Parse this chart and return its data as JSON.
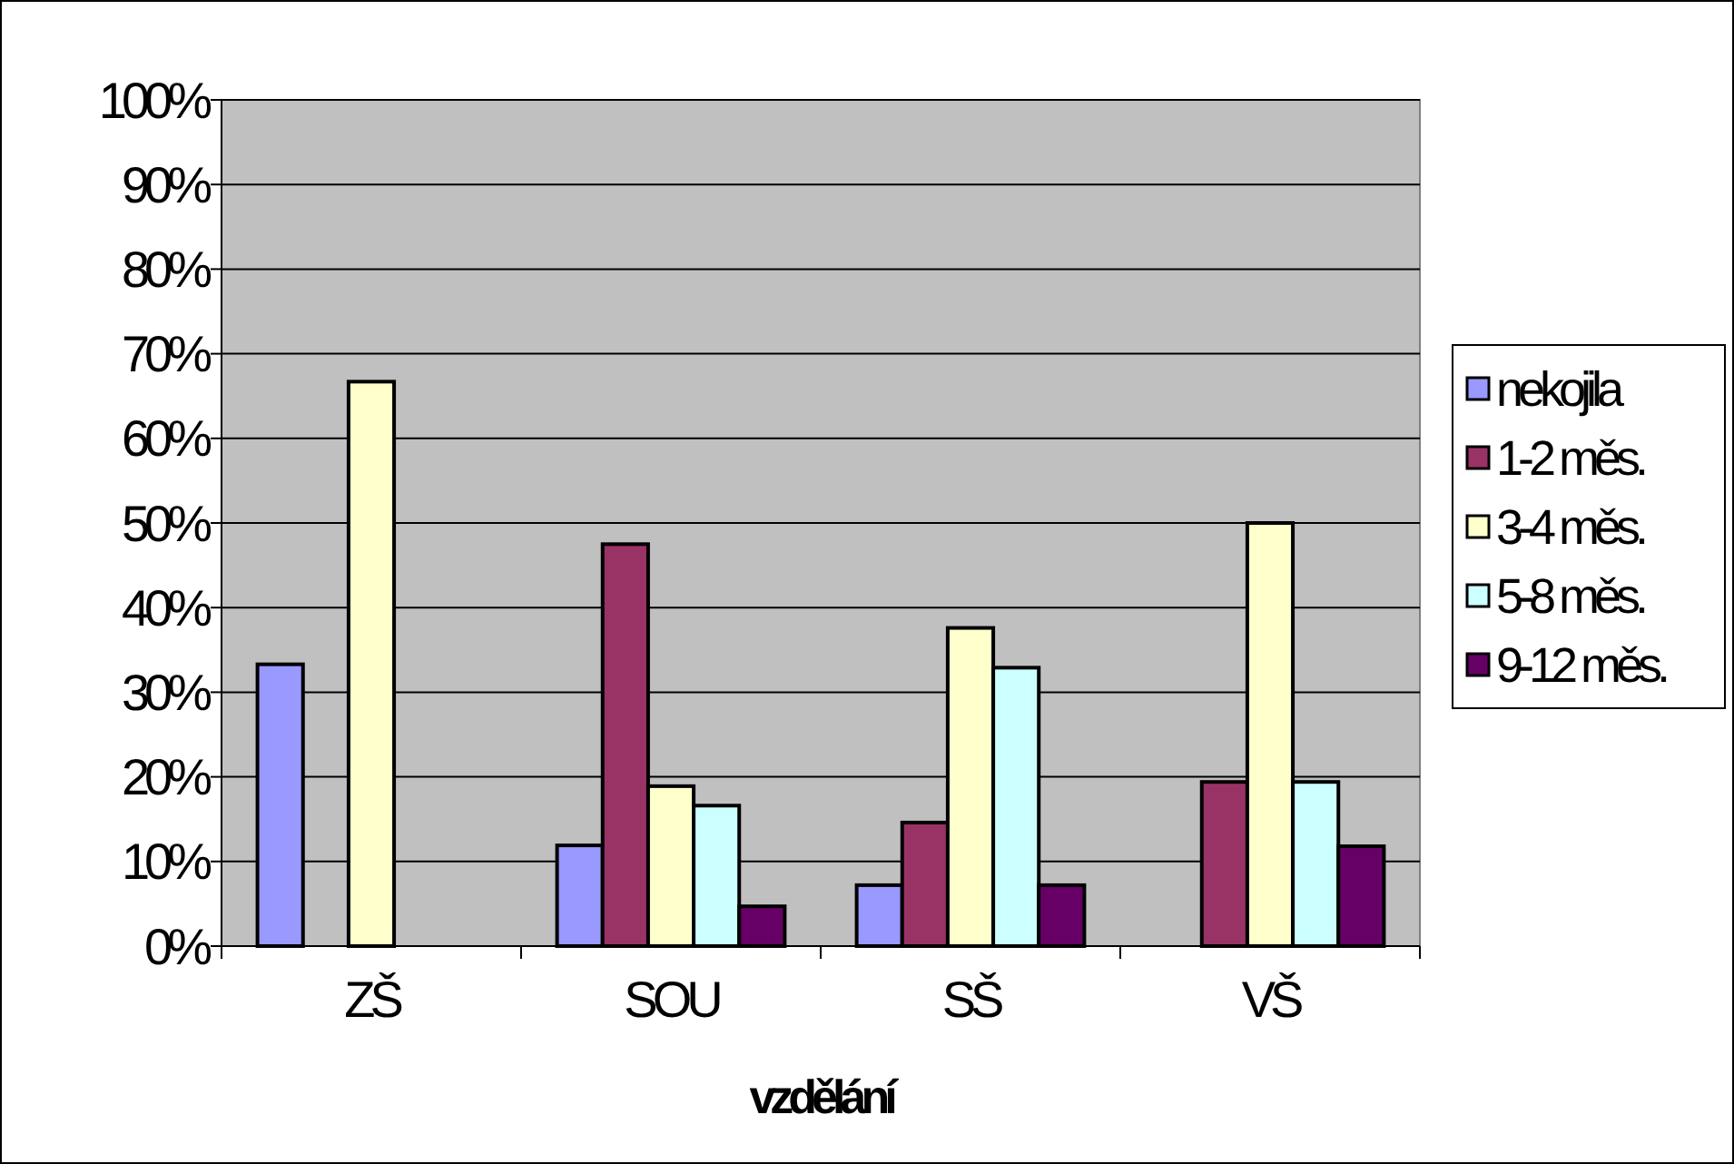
{
  "chart_data": {
    "type": "bar",
    "xlabel": "vzdělání",
    "categories": [
      "ZŠ",
      "SOU",
      "SŠ",
      "VŠ"
    ],
    "series": [
      {
        "name": "nekojila",
        "color": "#9999ff",
        "values": [
          33.3,
          11.9,
          7.2,
          0
        ]
      },
      {
        "name": "1-2 měs.",
        "color": "#993366",
        "values": [
          0,
          47.5,
          14.6,
          19.4
        ]
      },
      {
        "name": "3-4 měs.",
        "color": "#ffffcc",
        "values": [
          66.7,
          18.9,
          37.6,
          50
        ]
      },
      {
        "name": "5-8 měs.",
        "color": "#ccffff",
        "values": [
          0,
          16.6,
          32.9,
          19.4
        ]
      },
      {
        "name": "9-12 měs.",
        "color": "#660066",
        "values": [
          0,
          4.7,
          7.2,
          11.8
        ]
      }
    ],
    "ylim": [
      0,
      100
    ],
    "yticks": [
      {
        "value": 0,
        "label": "0%"
      },
      {
        "value": 10,
        "label": "10%"
      },
      {
        "value": 20,
        "label": "20%"
      },
      {
        "value": 30,
        "label": "30%"
      },
      {
        "value": 40,
        "label": "40%"
      },
      {
        "value": 50,
        "label": "50%"
      },
      {
        "value": 60,
        "label": "60%"
      },
      {
        "value": 70,
        "label": "70%"
      },
      {
        "value": 80,
        "label": "80%"
      },
      {
        "value": 90,
        "label": "90%"
      },
      {
        "value": 100,
        "label": "100%"
      }
    ],
    "grid": "y",
    "legend": "right"
  }
}
